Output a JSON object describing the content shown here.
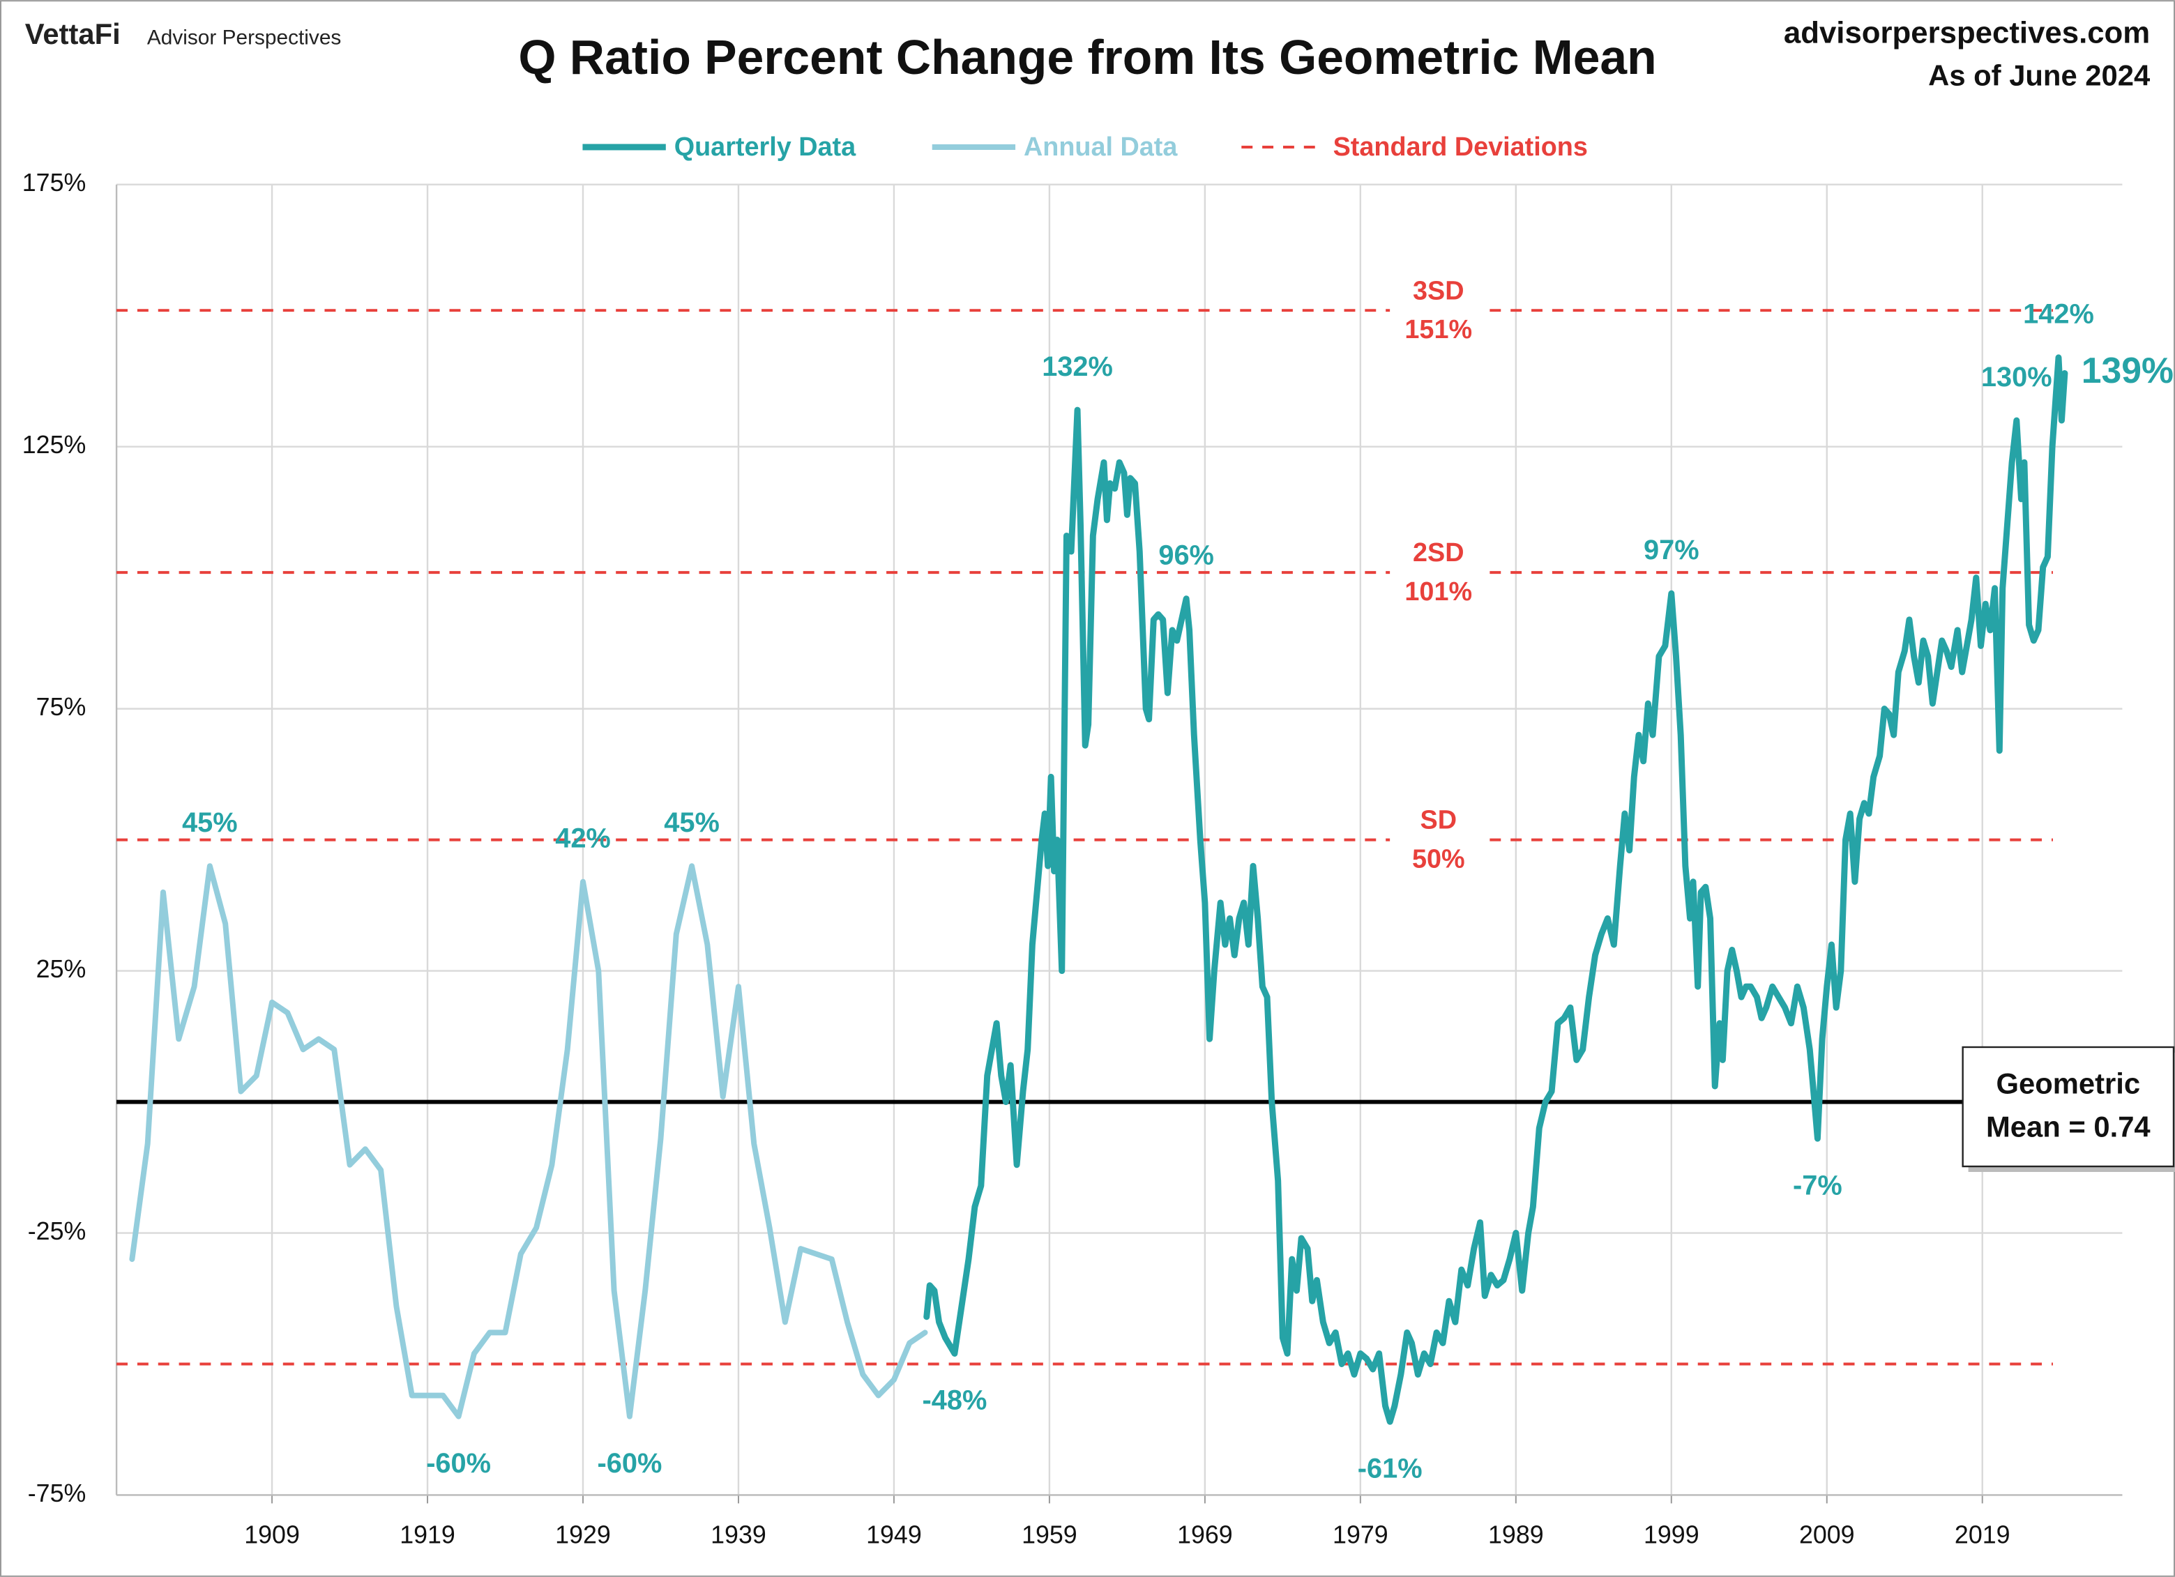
{
  "chart_data": {
    "type": "line",
    "brand": "VettaFi",
    "brand_sub": "Advisor Perspectives",
    "title": "Q Ratio Percent Change from Its Geometric Mean",
    "source": "advisorperspectives.com",
    "date_note": "As of June 2024",
    "legend": "top",
    "grid": true,
    "xlim": [
      1899,
      2028
    ],
    "xticks": [
      1909,
      1919,
      1929,
      1939,
      1949,
      1959,
      1969,
      1979,
      1989,
      1999,
      2009,
      2019
    ],
    "ylim": [
      -75,
      175
    ],
    "yticks": [
      {
        "value": -75,
        "label": "-75%"
      },
      {
        "value": -25,
        "label": "-25%"
      },
      {
        "value": 25,
        "label": "25%"
      },
      {
        "value": 75,
        "label": "75%"
      },
      {
        "value": 125,
        "label": "125%"
      },
      {
        "value": 175,
        "label": "175%"
      }
    ],
    "series": [
      {
        "name": "Quarterly Data",
        "color": "#26a3a6",
        "x": [
          1951.1,
          1951.3,
          1951.6,
          1951.9,
          1952.3,
          1952.9,
          1953.3,
          1953.8,
          1954.2,
          1954.6,
          1955.0,
          1955.3,
          1955.6,
          1955.9,
          1956.2,
          1956.5,
          1956.9,
          1957.3,
          1957.6,
          1957.9,
          1958.2,
          1958.5,
          1958.7,
          1958.9,
          1959.1,
          1959.3,
          1959.5,
          1959.8,
          1960.1,
          1960.4,
          1960.8,
          1961.0,
          1961.3,
          1961.5,
          1961.8,
          1962.1,
          1962.5,
          1962.7,
          1962.9,
          1963.2,
          1963.5,
          1963.8,
          1964.0,
          1964.2,
          1964.5,
          1964.8,
          1965.2,
          1965.4,
          1965.7,
          1966.0,
          1966.3,
          1966.6,
          1966.9,
          1967.2,
          1967.8,
          1968.0,
          1968.3,
          1968.7,
          1969.0,
          1969.3,
          1969.6,
          1970.0,
          1970.3,
          1970.6,
          1970.9,
          1971.2,
          1971.5,
          1971.8,
          1972.1,
          1972.4,
          1972.7,
          1973.0,
          1973.3,
          1973.7,
          1974.0,
          1974.3,
          1974.6,
          1974.9,
          1975.2,
          1975.6,
          1975.9,
          1976.2,
          1976.6,
          1977.0,
          1977.4,
          1977.8,
          1978.2,
          1978.6,
          1979.0,
          1979.4,
          1979.8,
          1980.2,
          1980.6,
          1980.9,
          1981.2,
          1981.6,
          1982.0,
          1982.3,
          1982.7,
          1983.1,
          1983.5,
          1983.9,
          1984.3,
          1984.7,
          1985.1,
          1985.5,
          1985.9,
          1986.3,
          1986.7,
          1987.0,
          1987.4,
          1987.8,
          1988.2,
          1988.6,
          1989.0,
          1989.4,
          1989.8,
          1990.1,
          1990.5,
          1990.9,
          1991.3,
          1991.7,
          1992.1,
          1992.5,
          1992.9,
          1993.3,
          1993.7,
          1994.1,
          1994.5,
          1994.9,
          1995.3,
          1995.7,
          1996.0,
          1996.3,
          1996.6,
          1996.9,
          1997.2,
          1997.5,
          1997.8,
          1998.2,
          1998.6,
          1999.0,
          1999.3,
          1999.6,
          1999.9,
          2000.2,
          2000.4,
          2000.7,
          2000.9,
          2001.2,
          2001.5,
          2001.8,
          2002.1,
          2002.3,
          2002.6,
          2002.9,
          2003.2,
          2003.5,
          2003.8,
          2004.1,
          2004.5,
          2004.8,
          2005.1,
          2005.5,
          2005.9,
          2006.3,
          2006.7,
          2007.1,
          2007.5,
          2007.9,
          2008.2,
          2008.4,
          2008.7,
          2009.0,
          2009.3,
          2009.6,
          2009.9,
          2010.2,
          2010.5,
          2010.8,
          2011.1,
          2011.4,
          2011.7,
          2012.0,
          2012.4,
          2012.7,
          2013.0,
          2013.3,
          2013.6,
          2014.0,
          2014.3,
          2014.6,
          2014.9,
          2015.2,
          2015.5,
          2015.8,
          2016.1,
          2016.4,
          2016.7,
          2017.0,
          2017.4,
          2017.7,
          2018.0,
          2018.3,
          2018.6,
          2018.9,
          2019.2,
          2019.5,
          2019.8,
          2020.1,
          2020.3,
          2020.6,
          2020.9,
          2021.2,
          2021.5,
          2021.7,
          2022.0,
          2022.3,
          2022.6,
          2022.9,
          2023.2,
          2023.5,
          2023.9,
          2024.1,
          2024.3
        ],
        "values": [
          -41,
          -35,
          -36,
          -42,
          -45,
          -48,
          -40,
          -30,
          -20,
          -16,
          5,
          10,
          15,
          5,
          0,
          7,
          -12,
          2,
          10,
          30,
          40,
          50,
          55,
          45,
          62,
          44,
          50,
          25,
          108,
          105,
          132,
          110,
          68,
          72,
          108,
          115,
          122,
          111,
          118,
          117,
          122,
          120,
          112,
          119,
          118,
          105,
          75,
          73,
          92,
          93,
          92,
          78,
          90,
          88,
          96,
          90,
          70,
          50,
          38,
          12,
          25,
          38,
          30,
          35,
          28,
          35,
          38,
          30,
          45,
          35,
          22,
          20,
          0,
          -15,
          -45,
          -48,
          -30,
          -36,
          -26,
          -28,
          -38,
          -34,
          -42,
          -46,
          -44,
          -50,
          -48,
          -52,
          -48,
          -49,
          -51,
          -48,
          -58,
          -61,
          -58,
          -52,
          -44,
          -46,
          -52,
          -48,
          -50,
          -44,
          -46,
          -38,
          -42,
          -32,
          -35,
          -28,
          -23,
          -37,
          -33,
          -35,
          -34,
          -30,
          -25,
          -36,
          -25,
          -20,
          -5,
          0,
          2,
          15,
          16,
          18,
          8,
          10,
          20,
          28,
          32,
          35,
          30,
          45,
          55,
          48,
          62,
          70,
          65,
          76,
          70,
          85,
          87,
          97,
          85,
          70,
          45,
          35,
          42,
          22,
          40,
          41,
          35,
          3,
          15,
          8,
          25,
          29,
          25,
          20,
          22,
          22,
          20,
          16,
          18,
          22,
          20,
          18,
          15,
          22,
          18,
          10,
          0,
          -7,
          12,
          22,
          30,
          18,
          25,
          50,
          55,
          42,
          54,
          57,
          55,
          62,
          66,
          75,
          74,
          70,
          82,
          86,
          92,
          85,
          80,
          88,
          85,
          76,
          82,
          88,
          86,
          83,
          90,
          82,
          87,
          92,
          100,
          87,
          95,
          90,
          98,
          67,
          98,
          110,
          122,
          130,
          115,
          122,
          91,
          88,
          90,
          102,
          104,
          125,
          142,
          130,
          139
        ]
      },
      {
        "name": "Annual Data",
        "color": "#93cddc",
        "x": [
          1900,
          1901,
          1902,
          1903,
          1904,
          1905,
          1906,
          1907,
          1908,
          1909,
          1910,
          1911,
          1912,
          1913,
          1914,
          1915,
          1916,
          1917,
          1918,
          1919,
          1920,
          1921,
          1922,
          1923,
          1924,
          1925,
          1926,
          1927,
          1928,
          1929,
          1930,
          1931,
          1932,
          1933,
          1934,
          1935,
          1936,
          1937,
          1938,
          1939,
          1940,
          1941,
          1942,
          1943,
          1944,
          1945,
          1946,
          1947,
          1948,
          1949,
          1950,
          1951
        ],
        "values": [
          -30,
          -8,
          40,
          12,
          22,
          45,
          34,
          2,
          5,
          19,
          17,
          10,
          12,
          10,
          -12,
          -9,
          -13,
          -39,
          -56,
          -56,
          -56,
          -60,
          -48,
          -44,
          -44,
          -29,
          -24,
          -12,
          10,
          42,
          25,
          -36,
          -60,
          -36,
          -7,
          32,
          45,
          30,
          1,
          22,
          -8,
          -24,
          -42,
          -28,
          -29,
          -30,
          -42,
          -52,
          -56,
          -53,
          -46,
          -44
        ]
      }
    ],
    "sd_legend": "Standard Deviations",
    "sd_color": "#e8403b",
    "sd_lines": [
      {
        "value": 151,
        "name": "3SD",
        "value_label": "151%"
      },
      {
        "value": 101,
        "name": "2SD",
        "value_label": "101%"
      },
      {
        "value": 50,
        "name": "SD",
        "value_label": "50%"
      },
      {
        "value": -50
      }
    ],
    "mean_line": {
      "value": 0,
      "label": [
        "Geometric",
        "Mean = 0.74"
      ]
    },
    "annotations": [
      {
        "text": "45%",
        "x": 1905,
        "y": 45,
        "position": "above"
      },
      {
        "text": "-60%",
        "x": 1921,
        "y": -60,
        "position": "below"
      },
      {
        "text": "42%",
        "x": 1929,
        "y": 42,
        "position": "above"
      },
      {
        "text": "-60%",
        "x": 1932,
        "y": -60,
        "position": "below"
      },
      {
        "text": "45%",
        "x": 1936,
        "y": 45,
        "position": "above"
      },
      {
        "text": "-48%",
        "x": 1952.9,
        "y": -48,
        "position": "below"
      },
      {
        "text": "132%",
        "x": 1960.8,
        "y": 132,
        "position": "above"
      },
      {
        "text": "96%",
        "x": 1967.8,
        "y": 96,
        "position": "above"
      },
      {
        "text": "-61%",
        "x": 1980.9,
        "y": -61,
        "position": "below"
      },
      {
        "text": "97%",
        "x": 1999.0,
        "y": 97,
        "position": "above"
      },
      {
        "text": "-7%",
        "x": 2008.4,
        "y": -7,
        "position": "below"
      },
      {
        "text": "130%",
        "x": 2021.2,
        "y": 130,
        "position": "above"
      },
      {
        "text": "142%",
        "x": 2023.9,
        "y": 142,
        "position": "above"
      },
      {
        "text": "139%",
        "x": 2024.3,
        "y": 139,
        "position": "right"
      }
    ]
  }
}
